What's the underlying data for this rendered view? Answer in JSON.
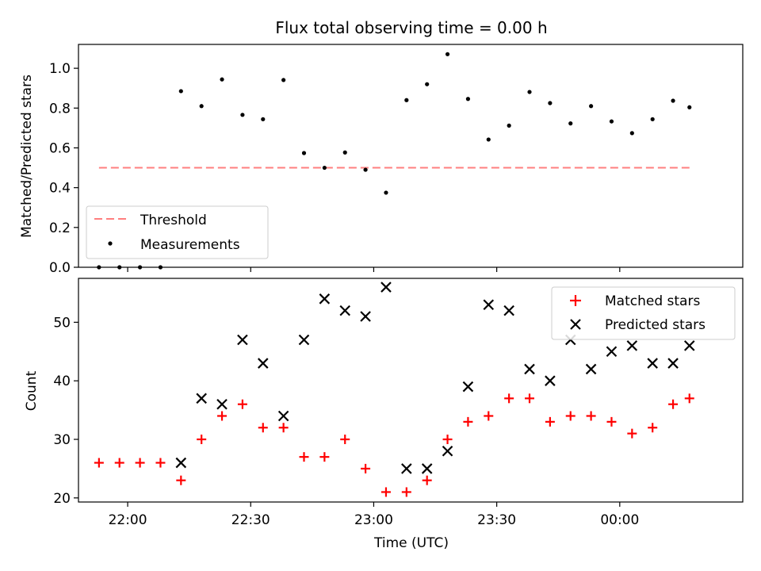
{
  "title": "Flux total observing time = 0.00 h",
  "colors": {
    "threshold": "#ff7f7f",
    "measurements": "#000000",
    "matched": "#ff0000",
    "predicted": "#000000",
    "axes": "#000000"
  },
  "chart_data": [
    {
      "type": "scatter",
      "title": "Flux total observing time = 0.00 h",
      "xlabel": "",
      "ylabel": "Matched/Predicted stars",
      "xlim": [
        "21:48",
        "00:30"
      ],
      "ylim": [
        0,
        1.12
      ],
      "yticks": [
        "0.0",
        "0.2",
        "0.4",
        "0.6",
        "0.8",
        "1.0"
      ],
      "legend": "lower-left",
      "threshold": {
        "name": "Threshold",
        "value": 0.5,
        "x_start": "21:53",
        "x_end": "00:17",
        "style": "dashed"
      },
      "series": [
        {
          "name": "Measurements",
          "x": [
            "21:53",
            "21:58",
            "22:03",
            "22:08",
            "22:13",
            "22:18",
            "22:23",
            "22:28",
            "22:33",
            "22:38",
            "22:43",
            "22:48",
            "22:53",
            "22:58",
            "23:03",
            "23:08",
            "23:13",
            "23:18",
            "23:23",
            "23:28",
            "23:33",
            "23:38",
            "23:43",
            "23:48",
            "23:53",
            "23:58",
            "00:03",
            "00:08",
            "00:13",
            "00:17"
          ],
          "y": [
            0.0,
            0.0,
            0.0,
            0.0,
            0.885,
            0.81,
            0.944,
            0.766,
            0.744,
            0.941,
            0.574,
            0.5,
            0.577,
            0.49,
            0.375,
            0.84,
            0.92,
            1.071,
            0.846,
            0.642,
            0.712,
            0.881,
            0.825,
            0.723,
            0.81,
            0.733,
            0.674,
            0.744,
            0.837,
            0.804
          ]
        }
      ]
    },
    {
      "type": "scatter",
      "xlabel": "Time (UTC)",
      "ylabel": "Count",
      "xlim": [
        "21:48",
        "00:30"
      ],
      "ylim": [
        19.3,
        57.5
      ],
      "xticks": [
        "22:00",
        "22:30",
        "23:00",
        "23:30",
        "00:00"
      ],
      "yticks": [
        "20",
        "30",
        "40",
        "50"
      ],
      "legend": "top-right",
      "series": [
        {
          "name": "Matched stars",
          "marker": "plus",
          "x": [
            "21:53",
            "21:58",
            "22:03",
            "22:08",
            "22:13",
            "22:18",
            "22:23",
            "22:28",
            "22:33",
            "22:38",
            "22:43",
            "22:48",
            "22:53",
            "22:58",
            "23:03",
            "23:08",
            "23:13",
            "23:18",
            "23:23",
            "23:28",
            "23:33",
            "23:38",
            "23:43",
            "23:48",
            "23:53",
            "23:58",
            "00:03",
            "00:08",
            "00:13",
            "00:17"
          ],
          "y": [
            26,
            26,
            26,
            26,
            23,
            30,
            34,
            36,
            32,
            32,
            27,
            27,
            30,
            25,
            21,
            21,
            23,
            30,
            33,
            34,
            37,
            37,
            33,
            34,
            34,
            33,
            31,
            32,
            36,
            37
          ]
        },
        {
          "name": "Predicted stars",
          "marker": "x",
          "x": [
            "22:13",
            "22:18",
            "22:23",
            "22:28",
            "22:33",
            "22:38",
            "22:43",
            "22:48",
            "22:53",
            "22:58",
            "23:03",
            "23:08",
            "23:13",
            "23:18",
            "23:23",
            "23:28",
            "23:33",
            "23:38",
            "23:43",
            "23:48",
            "23:53",
            "23:58",
            "00:03",
            "00:08",
            "00:13",
            "00:17"
          ],
          "y": [
            26,
            37,
            36,
            47,
            43,
            34,
            47,
            54,
            52,
            51,
            56,
            25,
            25,
            28,
            39,
            53,
            52,
            42,
            40,
            47,
            42,
            45,
            46,
            43,
            43,
            46
          ]
        }
      ]
    }
  ]
}
